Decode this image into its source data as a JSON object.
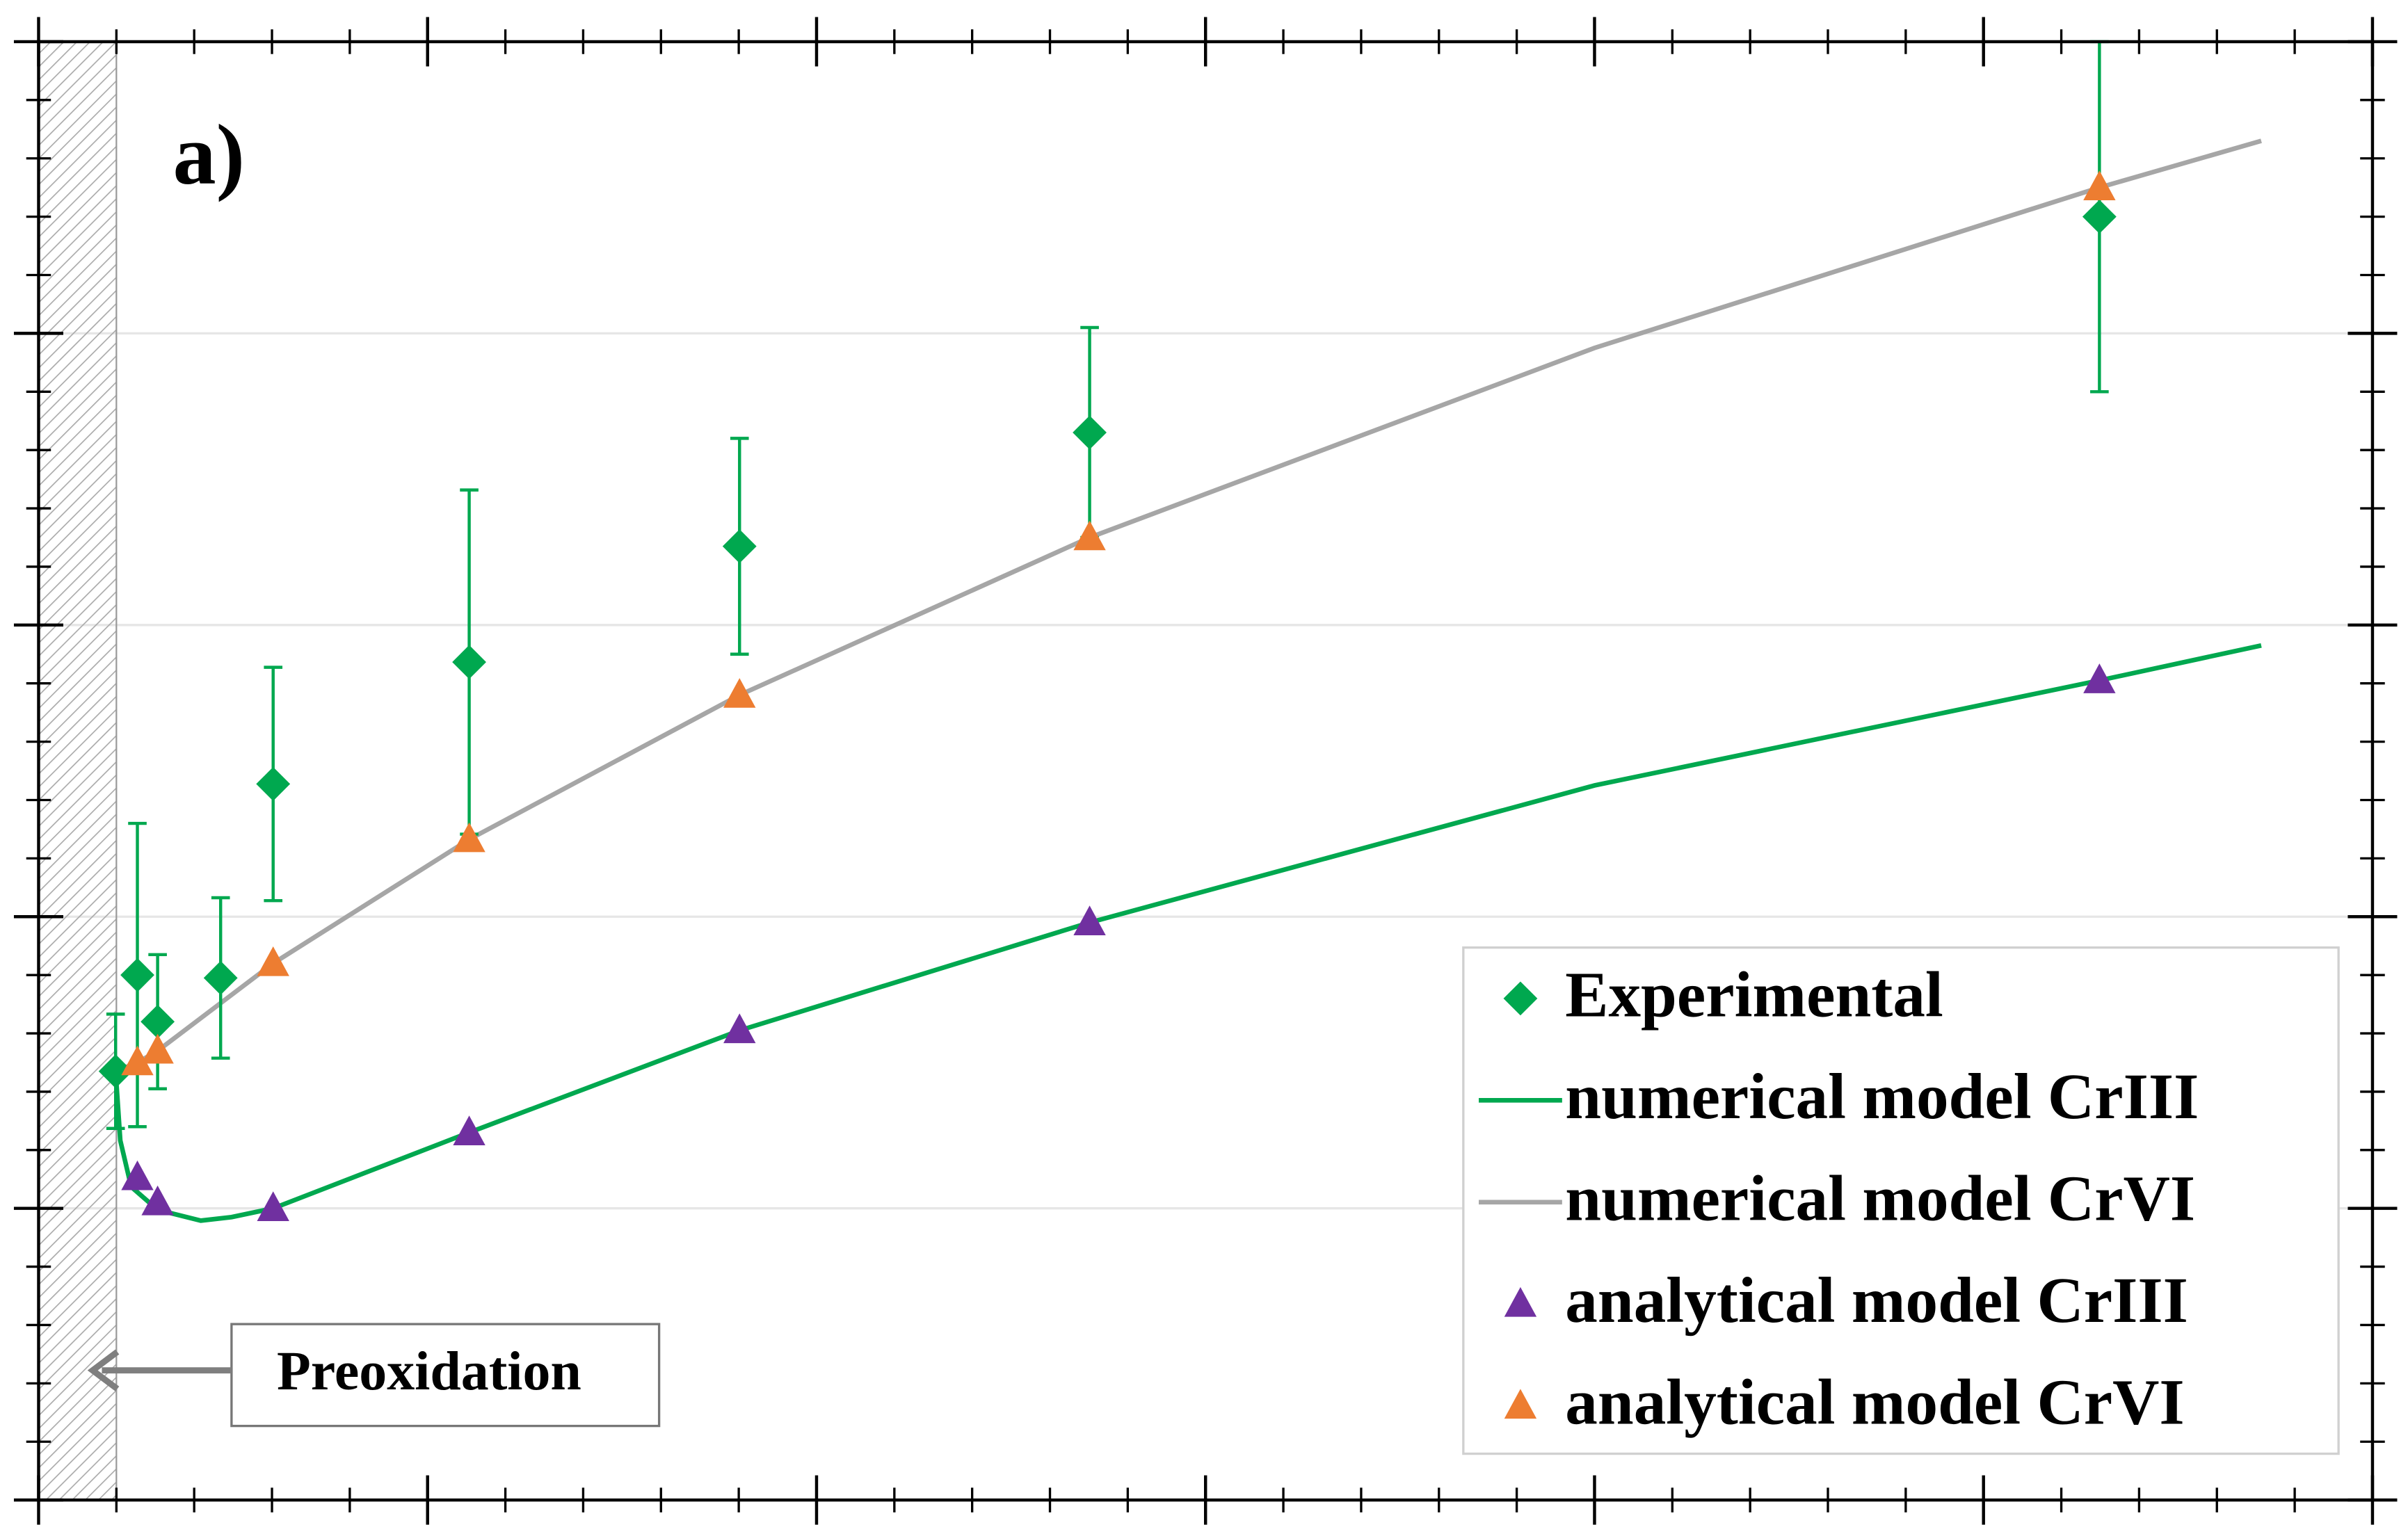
{
  "chart_data": {
    "type": "scatter",
    "title": "a)",
    "annotation": "Preoxidation",
    "preoxidation_region": [
      0,
      0.2
    ],
    "xlim": [
      0,
      6
    ],
    "xticks": [
      0,
      1,
      2,
      3,
      4,
      5,
      6
    ],
    "ylim": [
      -1,
      4
    ],
    "yticks": [
      -1,
      0,
      1,
      2,
      3,
      4
    ],
    "grid": true,
    "legend": "bottom-right",
    "series": [
      {
        "name": "Experimental",
        "style": "diamond",
        "color": "#00a84f",
        "x": [
          0.198,
          0.254,
          0.306,
          0.468,
          0.603,
          1.107,
          1.802,
          2.702,
          5.298
        ],
        "values": [
          0.47,
          0.8,
          0.64,
          0.79,
          1.455,
          1.873,
          2.27,
          2.66,
          3.4
        ],
        "errors": [
          0.196,
          0.52,
          0.23,
          0.275,
          0.4,
          0.59,
          0.37,
          0.36,
          0.6
        ]
      },
      {
        "name": "numerical model CrIII",
        "style": "line",
        "color": "#00a84f",
        "x": [
          0.198,
          0.21,
          0.238,
          0.306,
          0.417,
          0.496,
          0.603,
          1.107,
          1.802,
          2.702,
          4.0,
          5.298,
          5.714
        ],
        "values": [
          0.47,
          0.233,
          0.074,
          -0.005,
          -0.042,
          -0.03,
          0,
          0.26,
          0.61,
          0.98,
          1.45,
          1.81,
          1.93
        ]
      },
      {
        "name": "numerical model CrVI",
        "style": "line",
        "color": "#a6a6a6",
        "x": [
          0.198,
          0.254,
          0.306,
          0.603,
          1.107,
          1.802,
          2.702,
          4.0,
          5.298,
          5.714
        ],
        "values": [
          0.47,
          0.5,
          0.54,
          0.84,
          1.265,
          1.76,
          2.3,
          2.95,
          3.5,
          3.66
        ]
      },
      {
        "name": "analytical model CrIII",
        "style": "triangle",
        "color": "#7030a0",
        "x": [
          0.254,
          0.306,
          0.603,
          1.107,
          1.802,
          2.702,
          5.298
        ],
        "values": [
          0.106,
          0.02,
          0,
          0.26,
          0.61,
          0.98,
          1.81
        ]
      },
      {
        "name": "analytical model CrVI",
        "style": "triangle",
        "color": "#ed7d31",
        "x": [
          0.254,
          0.306,
          0.603,
          1.107,
          1.802,
          2.702,
          5.298
        ],
        "values": [
          0.5,
          0.54,
          0.84,
          1.265,
          1.76,
          2.3,
          3.5
        ]
      }
    ]
  }
}
